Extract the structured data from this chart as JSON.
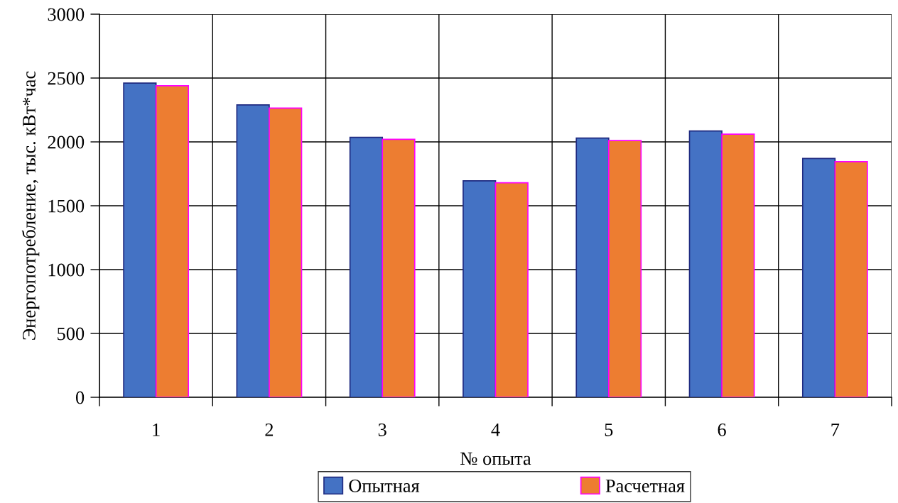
{
  "chart_data": {
    "type": "bar",
    "xlabel": "№ опыта",
    "ylabel": "Энергопотребление, тыс. кВт*час",
    "categories": [
      "1",
      "2",
      "3",
      "4",
      "5",
      "6",
      "7"
    ],
    "series": [
      {
        "name": "Опытная",
        "color": "#4472c4",
        "values": [
          2460,
          2290,
          2035,
          1695,
          2030,
          2085,
          1870
        ]
      },
      {
        "name": "Расчетная",
        "color": "#ed7d31",
        "values": [
          2440,
          2265,
          2020,
          1680,
          2010,
          2060,
          1845
        ]
      }
    ],
    "ylim": [
      0,
      3000
    ],
    "yticks": [
      0,
      500,
      1000,
      1500,
      2000,
      2500,
      3000
    ],
    "grid": true,
    "legend": "bottom"
  }
}
